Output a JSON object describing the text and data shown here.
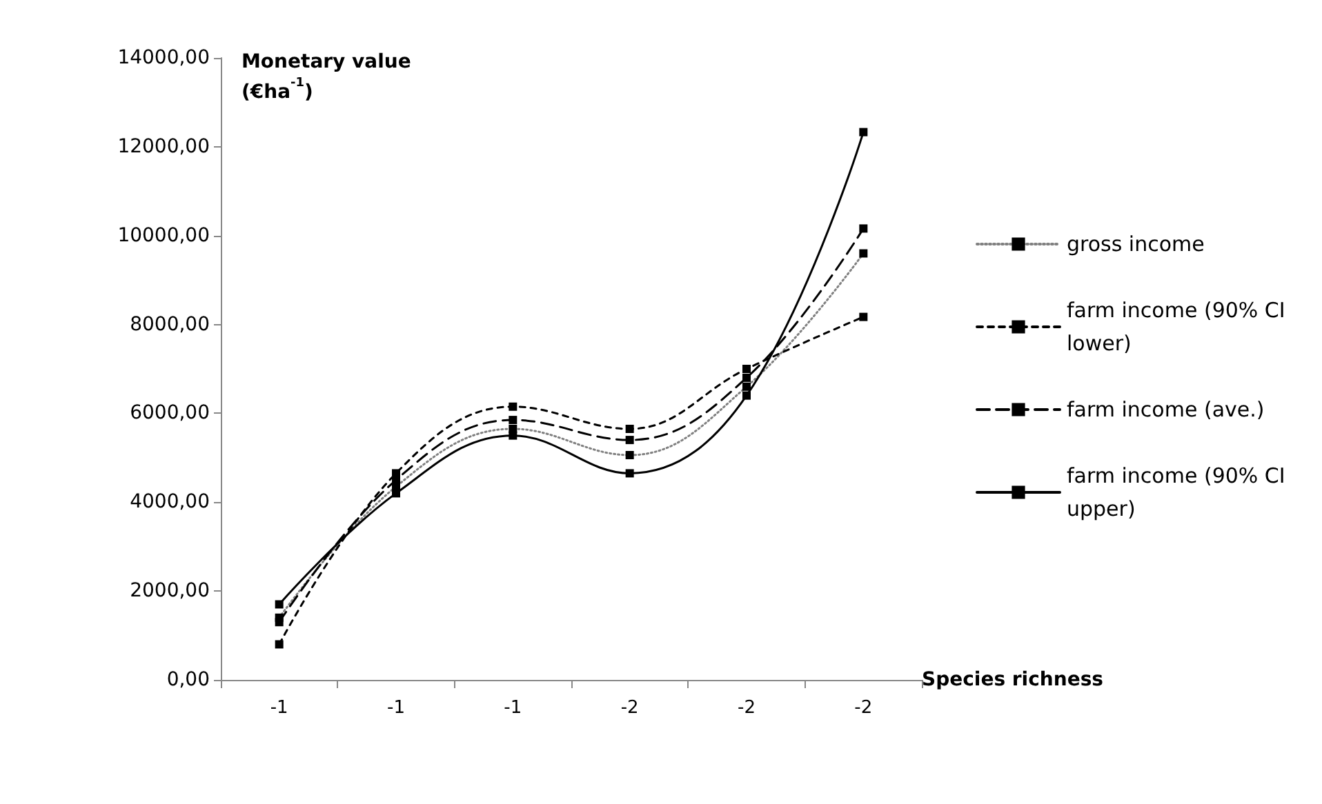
{
  "chart_data": {
    "type": "line",
    "xlabel": "Species richness",
    "ylabel": "Monetary value (€ha$^{-1}$)",
    "categories": [
      "-1",
      "-1",
      "-1",
      "-2",
      "-2",
      "-2"
    ],
    "series": [
      {
        "name": "gross income",
        "color": "#808080",
        "line_style": "dotted",
        "values": [
          1400,
          4350,
          5650,
          5060,
          6600,
          9600
        ]
      },
      {
        "name": "farm income (90% CI lower)",
        "color": "#000000",
        "line_style": "dashed",
        "values": [
          800,
          4650,
          6150,
          5650,
          7000,
          8170
        ]
      },
      {
        "name": "farm income (ave.)",
        "color": "#000000",
        "line_style": "longdash",
        "values": [
          1300,
          4500,
          5850,
          5400,
          6800,
          10160
        ]
      },
      {
        "name": "farm income (90% CI upper)",
        "color": "#000000",
        "line_style": "solid",
        "values": [
          1700,
          4200,
          5500,
          4650,
          6400,
          12330
        ]
      }
    ],
    "ylim": [
      0,
      14000
    ],
    "yticks": [
      {
        "value": 0,
        "label": "0,00"
      },
      {
        "value": 2000,
        "label": "2000,00"
      },
      {
        "value": 4000,
        "label": "4000,00"
      },
      {
        "value": 6000,
        "label": "6000,00"
      },
      {
        "value": 8000,
        "label": "8000,00"
      },
      {
        "value": 10000,
        "label": "10000,00"
      },
      {
        "value": 12000,
        "label": "12000,00"
      },
      {
        "value": 14000,
        "label": "14000,00"
      }
    ],
    "marker": "square",
    "grid": false,
    "legend": "right"
  }
}
